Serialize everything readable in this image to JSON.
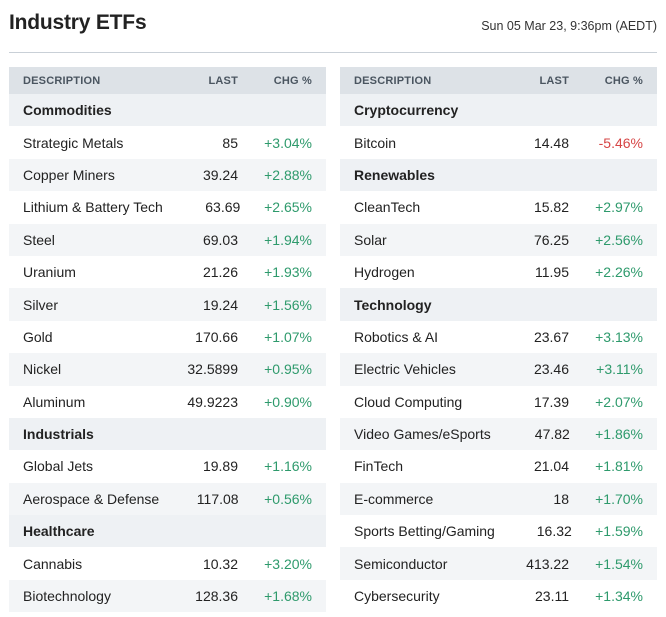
{
  "header": {
    "title": "Industry ETFs",
    "timestamp": "Sun 05 Mar 23, 9:36pm (AEDT)"
  },
  "columns": {
    "description": "DESCRIPTION",
    "last": "LAST",
    "chg": "CHG %"
  },
  "colors": {
    "positive": "#2e9a6c",
    "negative": "#d64545",
    "header_bg": "#dde2e7"
  },
  "left": [
    {
      "type": "category",
      "label": "Commodities"
    },
    {
      "type": "row",
      "name": "Strategic Metals",
      "last": "85",
      "chg": "+3.04%",
      "dir": "pos"
    },
    {
      "type": "row",
      "name": "Copper Miners",
      "last": "39.24",
      "chg": "+2.88%",
      "dir": "pos"
    },
    {
      "type": "row",
      "name": "Lithium & Battery Tech",
      "last": "63.69",
      "chg": "+2.65%",
      "dir": "pos"
    },
    {
      "type": "row",
      "name": "Steel",
      "last": "69.03",
      "chg": "+1.94%",
      "dir": "pos"
    },
    {
      "type": "row",
      "name": "Uranium",
      "last": "21.26",
      "chg": "+1.93%",
      "dir": "pos"
    },
    {
      "type": "row",
      "name": "Silver",
      "last": "19.24",
      "chg": "+1.56%",
      "dir": "pos"
    },
    {
      "type": "row",
      "name": "Gold",
      "last": "170.66",
      "chg": "+1.07%",
      "dir": "pos"
    },
    {
      "type": "row",
      "name": "Nickel",
      "last": "32.5899",
      "chg": "+0.95%",
      "dir": "pos"
    },
    {
      "type": "row",
      "name": "Aluminum",
      "last": "49.9223",
      "chg": "+0.90%",
      "dir": "pos"
    },
    {
      "type": "category",
      "label": "Industrials"
    },
    {
      "type": "row",
      "name": "Global Jets",
      "last": "19.89",
      "chg": "+1.16%",
      "dir": "pos"
    },
    {
      "type": "row",
      "name": "Aerospace & Defense",
      "last": "117.08",
      "chg": "+0.56%",
      "dir": "pos"
    },
    {
      "type": "category",
      "label": "Healthcare"
    },
    {
      "type": "row",
      "name": "Cannabis",
      "last": "10.32",
      "chg": "+3.20%",
      "dir": "pos"
    },
    {
      "type": "row",
      "name": "Biotechnology",
      "last": "128.36",
      "chg": "+1.68%",
      "dir": "pos"
    }
  ],
  "right": [
    {
      "type": "category",
      "label": "Cryptocurrency"
    },
    {
      "type": "row",
      "name": "Bitcoin",
      "last": "14.48",
      "chg": "-5.46%",
      "dir": "neg"
    },
    {
      "type": "category",
      "label": "Renewables"
    },
    {
      "type": "row",
      "name": "CleanTech",
      "last": "15.82",
      "chg": "+2.97%",
      "dir": "pos"
    },
    {
      "type": "row",
      "name": "Solar",
      "last": "76.25",
      "chg": "+2.56%",
      "dir": "pos"
    },
    {
      "type": "row",
      "name": "Hydrogen",
      "last": "11.95",
      "chg": "+2.26%",
      "dir": "pos"
    },
    {
      "type": "category",
      "label": "Technology"
    },
    {
      "type": "row",
      "name": "Robotics & AI",
      "last": "23.67",
      "chg": "+3.13%",
      "dir": "pos"
    },
    {
      "type": "row",
      "name": "Electric Vehicles",
      "last": "23.46",
      "chg": "+3.11%",
      "dir": "pos"
    },
    {
      "type": "row",
      "name": "Cloud Computing",
      "last": "17.39",
      "chg": "+2.07%",
      "dir": "pos"
    },
    {
      "type": "row",
      "name": "Video Games/eSports",
      "last": "47.82",
      "chg": "+1.86%",
      "dir": "pos"
    },
    {
      "type": "row",
      "name": "FinTech",
      "last": "21.04",
      "chg": "+1.81%",
      "dir": "pos"
    },
    {
      "type": "row",
      "name": "E-commerce",
      "last": "18",
      "chg": "+1.70%",
      "dir": "pos"
    },
    {
      "type": "row",
      "name": "Sports Betting/Gaming",
      "last": "16.32",
      "chg": "+1.59%",
      "dir": "pos"
    },
    {
      "type": "row",
      "name": "Semiconductor",
      "last": "413.22",
      "chg": "+1.54%",
      "dir": "pos"
    },
    {
      "type": "row",
      "name": "Cybersecurity",
      "last": "23.11",
      "chg": "+1.34%",
      "dir": "pos"
    }
  ]
}
